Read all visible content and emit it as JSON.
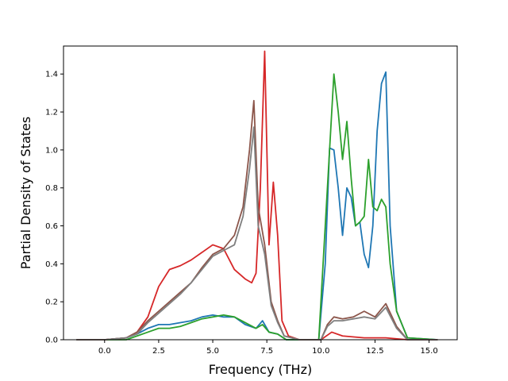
{
  "chart_data": {
    "type": "line",
    "title": "",
    "xlabel": "Frequency (THz)",
    "ylabel": "Partial Density of States",
    "xlim": [
      -1.9,
      16.3
    ],
    "ylim": [
      0.0,
      1.5474
    ],
    "xticks": [
      0.0,
      2.5,
      5.0,
      7.5,
      10.0,
      12.5,
      15.0
    ],
    "xtick_labels": [
      "0.0",
      "2.5",
      "5.0",
      "7.5",
      "10.0",
      "12.5",
      "15.0"
    ],
    "yticks": [
      0.0,
      0.2,
      0.4,
      0.6,
      0.8,
      1.0,
      1.2,
      1.4
    ],
    "ytick_labels": [
      "0.0",
      "0.2",
      "0.4",
      "0.6",
      "0.8",
      "1.0",
      "1.2",
      "1.4"
    ],
    "grid": false,
    "series": [
      {
        "color": "#1f77b4",
        "x": [
          -1.3,
          0.0,
          1.0,
          1.5,
          2.0,
          2.5,
          3.0,
          3.5,
          4.0,
          4.5,
          5.0,
          5.5,
          6.0,
          6.5,
          7.0,
          7.3,
          7.6,
          8.0,
          8.4,
          9.0,
          9.9,
          10.2,
          10.4,
          10.6,
          10.8,
          11.0,
          11.2,
          11.4,
          11.6,
          11.8,
          12.0,
          12.2,
          12.4,
          12.6,
          12.8,
          13.0,
          13.2,
          13.5,
          14.0,
          15.4
        ],
        "y": [
          0.0,
          0.0,
          0.01,
          0.03,
          0.06,
          0.08,
          0.08,
          0.09,
          0.1,
          0.12,
          0.13,
          0.12,
          0.12,
          0.08,
          0.06,
          0.1,
          0.04,
          0.03,
          0.0,
          0.0,
          0.0,
          0.4,
          1.01,
          1.0,
          0.8,
          0.55,
          0.8,
          0.75,
          0.6,
          0.62,
          0.45,
          0.38,
          0.6,
          1.1,
          1.35,
          1.41,
          0.6,
          0.15,
          0.01,
          0.0
        ]
      },
      {
        "color": "#2ca02c",
        "x": [
          -1.3,
          0.0,
          1.0,
          1.5,
          2.0,
          2.5,
          3.0,
          3.5,
          4.0,
          4.5,
          5.0,
          5.5,
          6.0,
          6.5,
          7.0,
          7.3,
          7.6,
          8.0,
          8.4,
          9.0,
          9.9,
          10.2,
          10.4,
          10.6,
          10.8,
          11.0,
          11.2,
          11.4,
          11.6,
          11.8,
          12.0,
          12.2,
          12.4,
          12.6,
          12.8,
          13.0,
          13.2,
          13.5,
          14.0,
          15.4
        ],
        "y": [
          0.0,
          0.0,
          0.0,
          0.02,
          0.04,
          0.06,
          0.06,
          0.07,
          0.09,
          0.11,
          0.12,
          0.13,
          0.12,
          0.09,
          0.06,
          0.08,
          0.04,
          0.03,
          0.0,
          0.0,
          0.0,
          0.6,
          1.0,
          1.4,
          1.2,
          0.95,
          1.15,
          0.85,
          0.6,
          0.62,
          0.65,
          0.95,
          0.7,
          0.68,
          0.74,
          0.7,
          0.4,
          0.15,
          0.01,
          0.0
        ]
      },
      {
        "color": "#d62728",
        "x": [
          -1.3,
          0.0,
          1.0,
          1.5,
          2.0,
          2.5,
          3.0,
          3.5,
          4.0,
          4.5,
          5.0,
          5.5,
          6.0,
          6.5,
          6.8,
          7.0,
          7.2,
          7.4,
          7.6,
          7.8,
          8.0,
          8.2,
          8.5,
          9.0,
          10.0,
          10.5,
          11.0,
          12.0,
          13.0,
          14.0,
          15.4
        ],
        "y": [
          0.0,
          0.0,
          0.01,
          0.04,
          0.12,
          0.28,
          0.37,
          0.39,
          0.42,
          0.46,
          0.5,
          0.48,
          0.37,
          0.32,
          0.3,
          0.35,
          0.8,
          1.52,
          0.5,
          0.83,
          0.55,
          0.1,
          0.02,
          0.0,
          0.0,
          0.04,
          0.02,
          0.01,
          0.01,
          0.0,
          0.0
        ]
      },
      {
        "color": "#8c564b",
        "x": [
          -1.3,
          0.0,
          1.0,
          1.5,
          2.0,
          2.5,
          3.0,
          3.5,
          4.0,
          4.5,
          5.0,
          5.5,
          6.0,
          6.4,
          6.7,
          6.9,
          7.1,
          7.4,
          7.7,
          8.0,
          8.3,
          9.0,
          10.0,
          10.3,
          10.6,
          11.0,
          11.5,
          12.0,
          12.5,
          13.0,
          13.5,
          14.0,
          15.4
        ],
        "y": [
          0.0,
          0.0,
          0.01,
          0.04,
          0.1,
          0.15,
          0.2,
          0.25,
          0.3,
          0.38,
          0.45,
          0.48,
          0.55,
          0.7,
          1.0,
          1.26,
          0.7,
          0.5,
          0.2,
          0.1,
          0.02,
          0.0,
          0.0,
          0.08,
          0.12,
          0.11,
          0.12,
          0.15,
          0.12,
          0.19,
          0.07,
          0.0,
          0.0
        ]
      },
      {
        "color": "#7f7f7f",
        "x": [
          -1.3,
          0.0,
          1.0,
          1.5,
          2.0,
          2.5,
          3.0,
          3.5,
          4.0,
          4.5,
          5.0,
          5.5,
          6.0,
          6.4,
          6.7,
          6.9,
          7.1,
          7.4,
          7.7,
          8.0,
          8.3,
          9.0,
          10.0,
          10.3,
          10.6,
          11.0,
          11.5,
          12.0,
          12.5,
          13.0,
          13.5,
          14.0,
          15.4
        ],
        "y": [
          0.0,
          0.0,
          0.01,
          0.03,
          0.09,
          0.14,
          0.19,
          0.24,
          0.3,
          0.37,
          0.44,
          0.47,
          0.5,
          0.65,
          0.9,
          1.12,
          0.6,
          0.45,
          0.18,
          0.09,
          0.02,
          0.0,
          0.0,
          0.07,
          0.1,
          0.1,
          0.11,
          0.12,
          0.11,
          0.17,
          0.06,
          0.0,
          0.0
        ]
      }
    ]
  }
}
